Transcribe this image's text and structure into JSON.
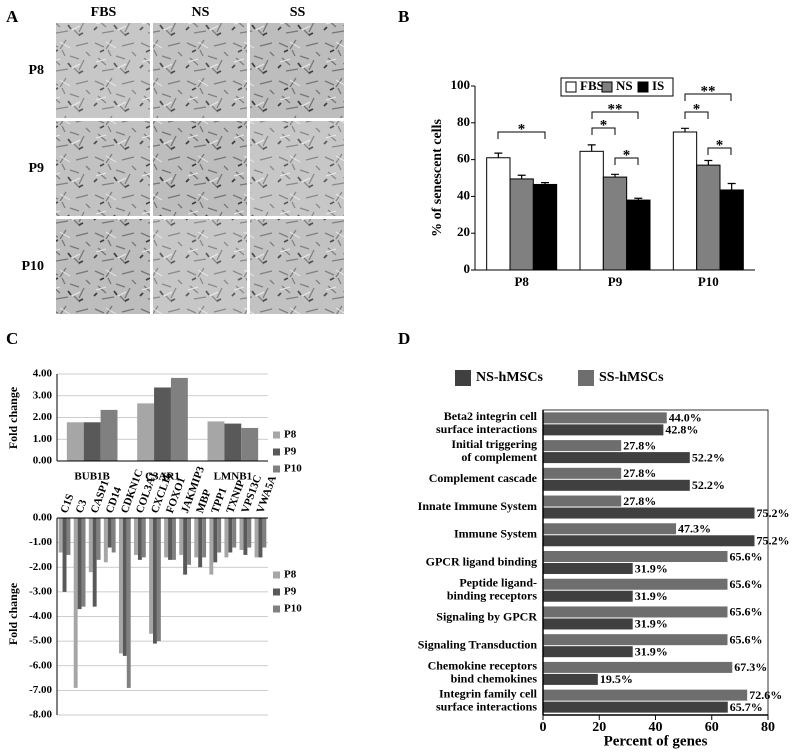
{
  "panel_labels": [
    "A",
    "B",
    "C",
    "D"
  ],
  "micrographs": {
    "columns": [
      "FBS",
      "NS",
      "SS"
    ],
    "rows": [
      "P8",
      "P9",
      "P10"
    ]
  },
  "chart_data": [
    {
      "type": "bar",
      "ylabel": "% of senescent cells",
      "categories": [
        "P8",
        "P9",
        "P10"
      ],
      "series": [
        {
          "name": "FBS",
          "color": "#ffffff",
          "values": [
            61,
            64.5,
            75
          ],
          "errors": [
            2.5,
            3.5,
            2
          ]
        },
        {
          "name": "NS",
          "color": "#808080",
          "values": [
            49.5,
            50.5,
            57
          ],
          "errors": [
            2,
            1.5,
            2.5
          ]
        },
        {
          "name": "IS",
          "color": "#000000",
          "values": [
            46.5,
            38,
            43.5
          ],
          "errors": [
            1,
            1,
            3.5
          ]
        }
      ],
      "ylim": [
        0,
        100
      ],
      "yticks": [
        0,
        20,
        40,
        60,
        80,
        100
      ],
      "grid": false,
      "legend": "top",
      "annotations": [
        "*",
        "*",
        "**",
        "*",
        "*",
        "**",
        "*"
      ]
    },
    {
      "type": "bar",
      "ylabel": "Fold change",
      "categories": [
        "BUB1B",
        "C3AR1",
        "LMNB1"
      ],
      "series": [
        {
          "name": "P8",
          "color": "#a6a6a6",
          "values": [
            1.78,
            2.65,
            1.82
          ]
        },
        {
          "name": "P9",
          "color": "#595959",
          "values": [
            1.78,
            3.38,
            1.72
          ]
        },
        {
          "name": "P10",
          "color": "#808080",
          "values": [
            2.35,
            3.82,
            1.52
          ]
        }
      ],
      "ylim": [
        0,
        4
      ],
      "yticks": [
        {
          "value": 0,
          "label": "0.00"
        },
        {
          "value": 1,
          "label": "1.00"
        },
        {
          "value": 2,
          "label": "2.00"
        },
        {
          "value": 3,
          "label": "3.00"
        },
        {
          "value": 4,
          "label": "4.00"
        }
      ],
      "grid": true,
      "legend": "right"
    },
    {
      "type": "bar",
      "ylabel": "Fold change",
      "categories": [
        "C1S",
        "C3",
        "CASP1",
        "CD14",
        "CDKN1C",
        "COL3A1",
        "CXCL16",
        "FOXO1",
        "JAKMIP3",
        "MBP",
        "TPP1",
        "TXNIP",
        "VPS13C",
        "VWA5A"
      ],
      "series": [
        {
          "name": "P8",
          "color": "#a6a6a6",
          "values": [
            -1.4,
            -6.9,
            -2.2,
            -1.8,
            -5.5,
            -1.5,
            -4.7,
            -1.6,
            -1.5,
            -1.6,
            -2.3,
            -1.6,
            -1.3,
            -1.6
          ]
        },
        {
          "name": "P9",
          "color": "#595959",
          "values": [
            -3.0,
            -3.7,
            -3.6,
            -1.2,
            -5.6,
            -1.7,
            -5.1,
            -1.7,
            -2.3,
            -2.0,
            -1.8,
            -1.4,
            -1.5,
            -1.6
          ]
        },
        {
          "name": "P10",
          "color": "#808080",
          "values": [
            -1.5,
            -3.6,
            -1.7,
            -1.4,
            -6.9,
            -1.6,
            -5.0,
            -1.7,
            -1.9,
            -1.6,
            -1.4,
            -1.2,
            -1.2,
            -1.2
          ]
        }
      ],
      "ylim": [
        -8,
        0
      ],
      "yticks": [
        {
          "value": 0,
          "label": "0.00"
        },
        {
          "value": -1,
          "label": "-1.00"
        },
        {
          "value": -2,
          "label": "-2.00"
        },
        {
          "value": -3,
          "label": "-3.00"
        },
        {
          "value": -4,
          "label": "-4.00"
        },
        {
          "value": -5,
          "label": "-5.00"
        },
        {
          "value": -6,
          "label": "-6.00"
        },
        {
          "value": -7,
          "label": "-7.00"
        },
        {
          "value": -8,
          "label": "-8.00"
        }
      ],
      "grid": true,
      "legend": "right"
    },
    {
      "type": "barh",
      "xlabel": "Percent of genes",
      "categories": [
        [
          "Beta2 integrin cell",
          "surface interactions"
        ],
        [
          "Initial triggering",
          "of complement"
        ],
        [
          "Complement cascade"
        ],
        [
          "Innate Immune System"
        ],
        [
          "Immune System"
        ],
        [
          "GPCR ligand binding"
        ],
        [
          "Peptide ligand-",
          "binding receptors"
        ],
        [
          "Signaling by GPCR"
        ],
        [
          "Signaling Transduction"
        ],
        [
          "Chemokine receptors",
          "bind chemokines"
        ],
        [
          "Integrin family cell",
          "surface interactions"
        ]
      ],
      "series": [
        {
          "name": "NS-hMSCs",
          "color": "#404040",
          "values": [
            42.8,
            52.2,
            52.2,
            75.2,
            75.2,
            31.9,
            31.9,
            31.9,
            31.9,
            19.5,
            65.7
          ],
          "value_labels": [
            "42.8%",
            "52.2%",
            "52.2%",
            "75.2%",
            "75.2%",
            "31.9%",
            "31.9%",
            "31.9%",
            "31.9%",
            "19.5%",
            "65.7%"
          ]
        },
        {
          "name": "SS-hMSCs",
          "color": "#6e6e6e",
          "values": [
            44.0,
            27.8,
            27.8,
            27.8,
            47.3,
            65.6,
            65.6,
            65.6,
            65.6,
            67.3,
            72.6
          ],
          "value_labels": [
            "44.0%",
            "27.8%",
            "27.8%",
            "27.8%",
            "47.3%",
            "65.6%",
            "65.6%",
            "65.6%",
            "65.6%",
            "67.3%",
            "72.6%"
          ]
        }
      ],
      "xlim": [
        0,
        80
      ],
      "xticks": [
        0,
        20,
        40,
        60,
        80
      ],
      "legend": "top"
    }
  ]
}
